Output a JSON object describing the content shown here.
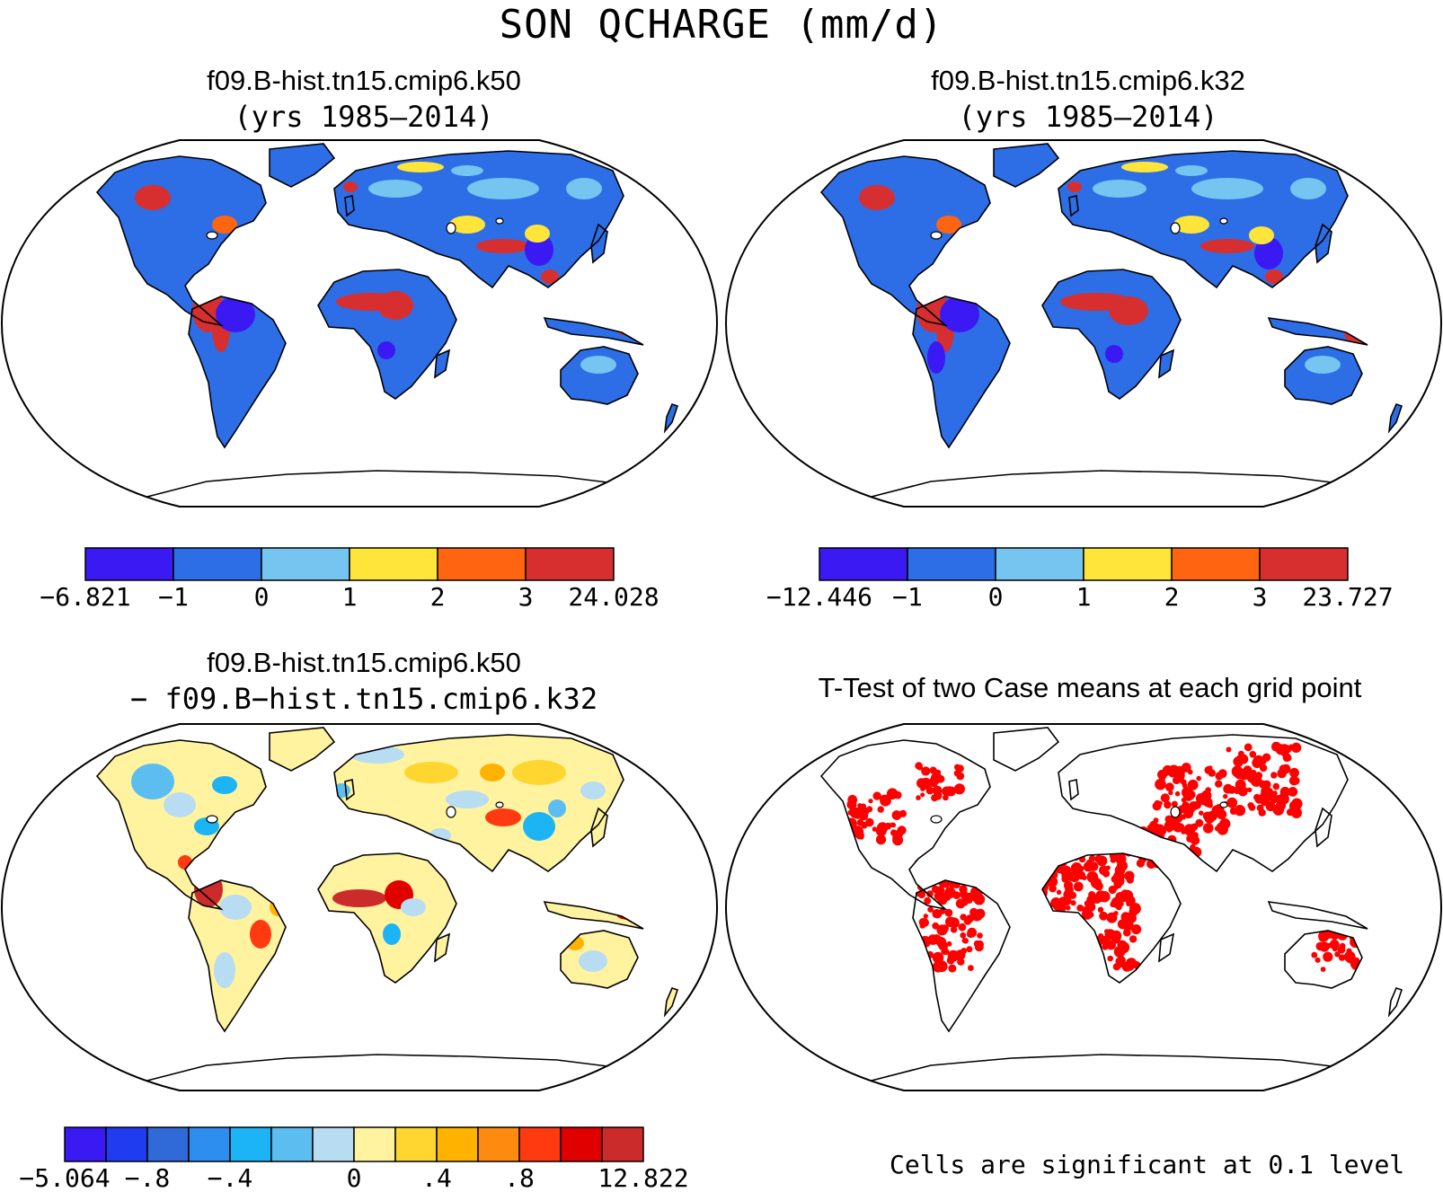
{
  "figure": {
    "title": "SON QCHARGE (mm/d)"
  },
  "panels": {
    "k50": {
      "line1": "f09.B-hist.tn15.cmip6.k50",
      "line2": "(yrs 1985–2014)",
      "colorbar": {
        "colors": [
          "#3b19f3",
          "#2d6ee6",
          "#76c4f0",
          "#ffe53a",
          "#ff6410",
          "#d72f2f"
        ],
        "labels": [
          "−6.821",
          "−1",
          "0",
          "1",
          "2",
          "3",
          "24.028"
        ]
      }
    },
    "k32": {
      "line1": "f09.B-hist.tn15.cmip6.k32",
      "line2": "(yrs 1985–2014)",
      "colorbar": {
        "colors": [
          "#3b19f3",
          "#2d6ee6",
          "#76c4f0",
          "#ffe53a",
          "#ff6410",
          "#d72f2f"
        ],
        "labels": [
          "−12.446",
          "−1",
          "0",
          "1",
          "2",
          "3",
          "23.727"
        ]
      }
    },
    "diff": {
      "line1": "f09.B-hist.tn15.cmip6.k50",
      "line2": "− f09.B−hist.tn15.cmip6.k32",
      "colorbar": {
        "colors": [
          "#3b19f3",
          "#1f3cf0",
          "#2f6ad8",
          "#2d8ef0",
          "#1cb4f5",
          "#5bbdf0",
          "#b8dcf2",
          "#fff3a0",
          "#ffd630",
          "#ffb300",
          "#ff8a10",
          "#ff3a10",
          "#e00000",
          "#cc2b2b"
        ],
        "labels": [
          "−5.064",
          "",
          "−.8",
          "",
          "−.4",
          "",
          "",
          "0",
          "",
          ".4",
          "",
          ".8",
          "",
          "",
          "12.822"
        ]
      }
    },
    "ttest": {
      "title": "T-Test of two Case means at each grid point",
      "note": "Cells are significant at 0.1 level",
      "significant_color": "#ff0000"
    }
  }
}
